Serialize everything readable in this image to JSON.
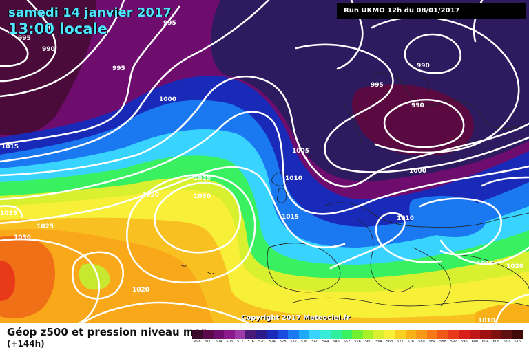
{
  "title": {
    "date": "samedi 14 janvier 2017",
    "time": "13:00 locale"
  },
  "run": "Run UKMO 12h du 08/01/2017",
  "copyright": "Copyright 2017 Meteociel.fr",
  "legend": {
    "title": "Géop z500 et pression niveau mer",
    "subtitle": "(+144h)",
    "scale_values": [
      "496",
      "500",
      "504",
      "508",
      "512",
      "516",
      "520",
      "524",
      "528",
      "532",
      "536",
      "540",
      "544",
      "548",
      "552",
      "556",
      "560",
      "564",
      "568",
      "572",
      "576",
      "580",
      "584",
      "588",
      "592",
      "596",
      "600",
      "604",
      "608",
      "612",
      "616"
    ],
    "scale_colors": [
      "#3a0a2a",
      "#5a0a4a",
      "#6e0d6e",
      "#8a1a8a",
      "#9c3aa8",
      "#4a1a7a",
      "#2a1a8a",
      "#1a2ab8",
      "#1a4ae0",
      "#1a78f0",
      "#20a8f8",
      "#38d4ff",
      "#38ecd8",
      "#30f0a0",
      "#38f060",
      "#70f030",
      "#a8f028",
      "#d8f030",
      "#f8f038",
      "#f8d020",
      "#f8b018",
      "#f89818",
      "#f87818",
      "#f05818",
      "#e83a18",
      "#d82018",
      "#c01818",
      "#a01010",
      "#801010",
      "#601010",
      "#400808"
    ]
  },
  "isobars": [
    "995",
    "990",
    "995",
    "1000",
    "995",
    "990",
    "995",
    "990",
    "1000",
    "1015",
    "1005",
    "1010",
    "1025",
    "1020",
    "1030",
    "1015",
    "1010",
    "1035",
    "1025",
    "1030",
    "1020",
    "1015",
    "1020",
    "1010"
  ]
}
